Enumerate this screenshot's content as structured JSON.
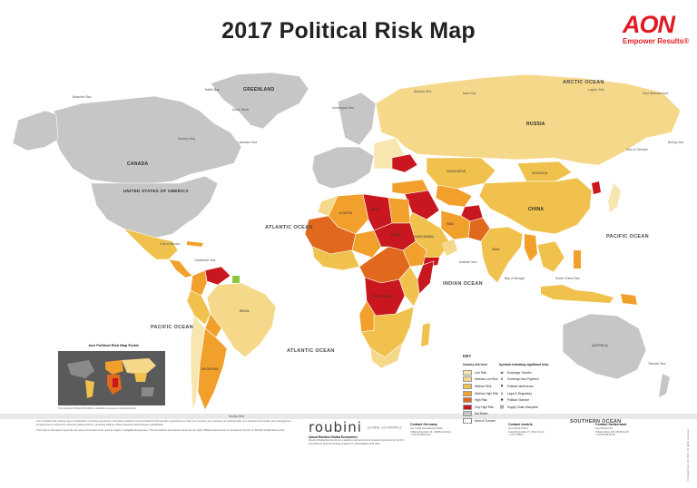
{
  "title": "2017 Political Risk Map",
  "brand": {
    "logo_text": "AON",
    "tagline": "Empower Results®",
    "color": "#e11b22"
  },
  "oceans": [
    "ARCTIC OCEAN",
    "ATLANTIC OCEAN",
    "PACIFIC OCEAN",
    "PACIFIC OCEAN",
    "INDIAN OCEAN",
    "ATLANTIC OCEAN",
    "SOUTHERN OCEAN"
  ],
  "countries": [
    "GREENLAND",
    "CANADA",
    "UNITED STATES OF AMERICA",
    "RUSSIA",
    "KAZAKHSTAN",
    "CHINA",
    "MONGOLIA",
    "INDIA",
    "BRAZIL",
    "AUSTRALIA",
    "ALGERIA",
    "LIBYA",
    "SUDAN",
    "SAUDI ARABIA",
    "IRAN",
    "CONGO (DRC)",
    "ARGENTINA"
  ],
  "seas": [
    "Beaufort Sea",
    "Baffin Bay",
    "Hudson Bay",
    "Labrador Sea",
    "Gulf of Mexico",
    "Caribbean Sea",
    "Norwegian Sea",
    "Kara Sea",
    "Laptev Sea",
    "East Siberian Sea",
    "Bering Sea",
    "Barents Sea",
    "Arabian Sea",
    "Bay of Bengal",
    "Sea of Okhotsk",
    "South China Sea",
    "Tasman Sea",
    "Scotia Sea",
    "Davis Strait"
  ],
  "risk_colors": {
    "low": "#f7e6b0",
    "medium_low": "#f6d88a",
    "medium": "#f0c24d",
    "medium_high": "#f1a02c",
    "high": "#e0691d",
    "very_high": "#c8171e",
    "not_rated": "#c6c6c6"
  },
  "inset": {
    "title": "Aon Political Risk Map Portal",
    "footer": "The interactive Political Risk Map is available at www.aon.com/political-risk"
  },
  "key": {
    "title": "KEY",
    "country_risk_title": "Country risk level",
    "country_risk": [
      {
        "label": "Low Risk",
        "color": "#f7e6b0"
      },
      {
        "label": "Medium-Low Risk",
        "color": "#f6d88a"
      },
      {
        "label": "Medium Risk",
        "color": "#f0c24d"
      },
      {
        "label": "Medium-High Risk",
        "color": "#f1a02c"
      },
      {
        "label": "High Risk",
        "color": "#e0691d"
      },
      {
        "label": "Very High Risk",
        "color": "#c8171e"
      },
      {
        "label": "Not Rated",
        "color": "#c6c6c6"
      },
      {
        "label": "Area of Concern",
        "color": "#ffffff"
      }
    ],
    "symbols_title": "Symbols indicating significant risks",
    "symbols": [
      {
        "label": "Exchange Transfer",
        "icon": "exchange-icon",
        "glyph": "⇄"
      },
      {
        "label": "Sovereign Non-Payment",
        "icon": "nonpayment-icon",
        "glyph": "$"
      },
      {
        "label": "Political Interference",
        "icon": "interference-icon",
        "glyph": "⚑"
      },
      {
        "label": "Legal & Regulatory",
        "icon": "legal-icon",
        "glyph": "§"
      },
      {
        "label": "Political Violence",
        "icon": "violence-icon",
        "glyph": "✸"
      },
      {
        "label": "Supply Chain Disruption",
        "icon": "supply-chain-icon",
        "glyph": "⛓"
      }
    ]
  },
  "disclaimer": [
    "Aon's political risk experts use a combination of market experience, innovative analysis tools and tailored risk transfer programmes to help you minimise your exposure to political risks. Aon designs risk transfer and management programmes to respond to adverse political actions, providing balance sheet protection and business stabilisation.",
    "This map is intended for general use only and should not be used for legal or navigational purposes. The boundaries and names shown do not imply official endorsement or acceptance by Aon or Roubini Global Economics."
  ],
  "roubini": {
    "logo": "roubini",
    "logo_caption": "GLOBAL ECONOMICS",
    "heading": "About Roubini Global Economics",
    "text": "Roubini Global Economics is a leading macroeconomic research and country risk firm that delivers forward-looking analysis of vulnerabilities and risks."
  },
  "contacts": [
    {
      "heading": "Contact Germany",
      "lines": [
        "Aon Credit International GmbH",
        "Caffamacherreihe 16 | 20355 Hamburg",
        "t +49 40 3605-3172"
      ]
    },
    {
      "heading": "Contact Austria",
      "lines": [
        "Aon Austria GmbH",
        "Geiselbergstraße 17 | 1110 Vienna",
        "t +43 5 7800-0"
      ]
    },
    {
      "heading": "Contact Switzerland",
      "lines": [
        "Aon Schweiz AG",
        "Vulkanstrasse 106 | 8048 Zurich",
        "t +41 58 266 00 00"
      ]
    }
  ],
  "copyright": "Copyright Aon plc 2017. All rights reserved."
}
